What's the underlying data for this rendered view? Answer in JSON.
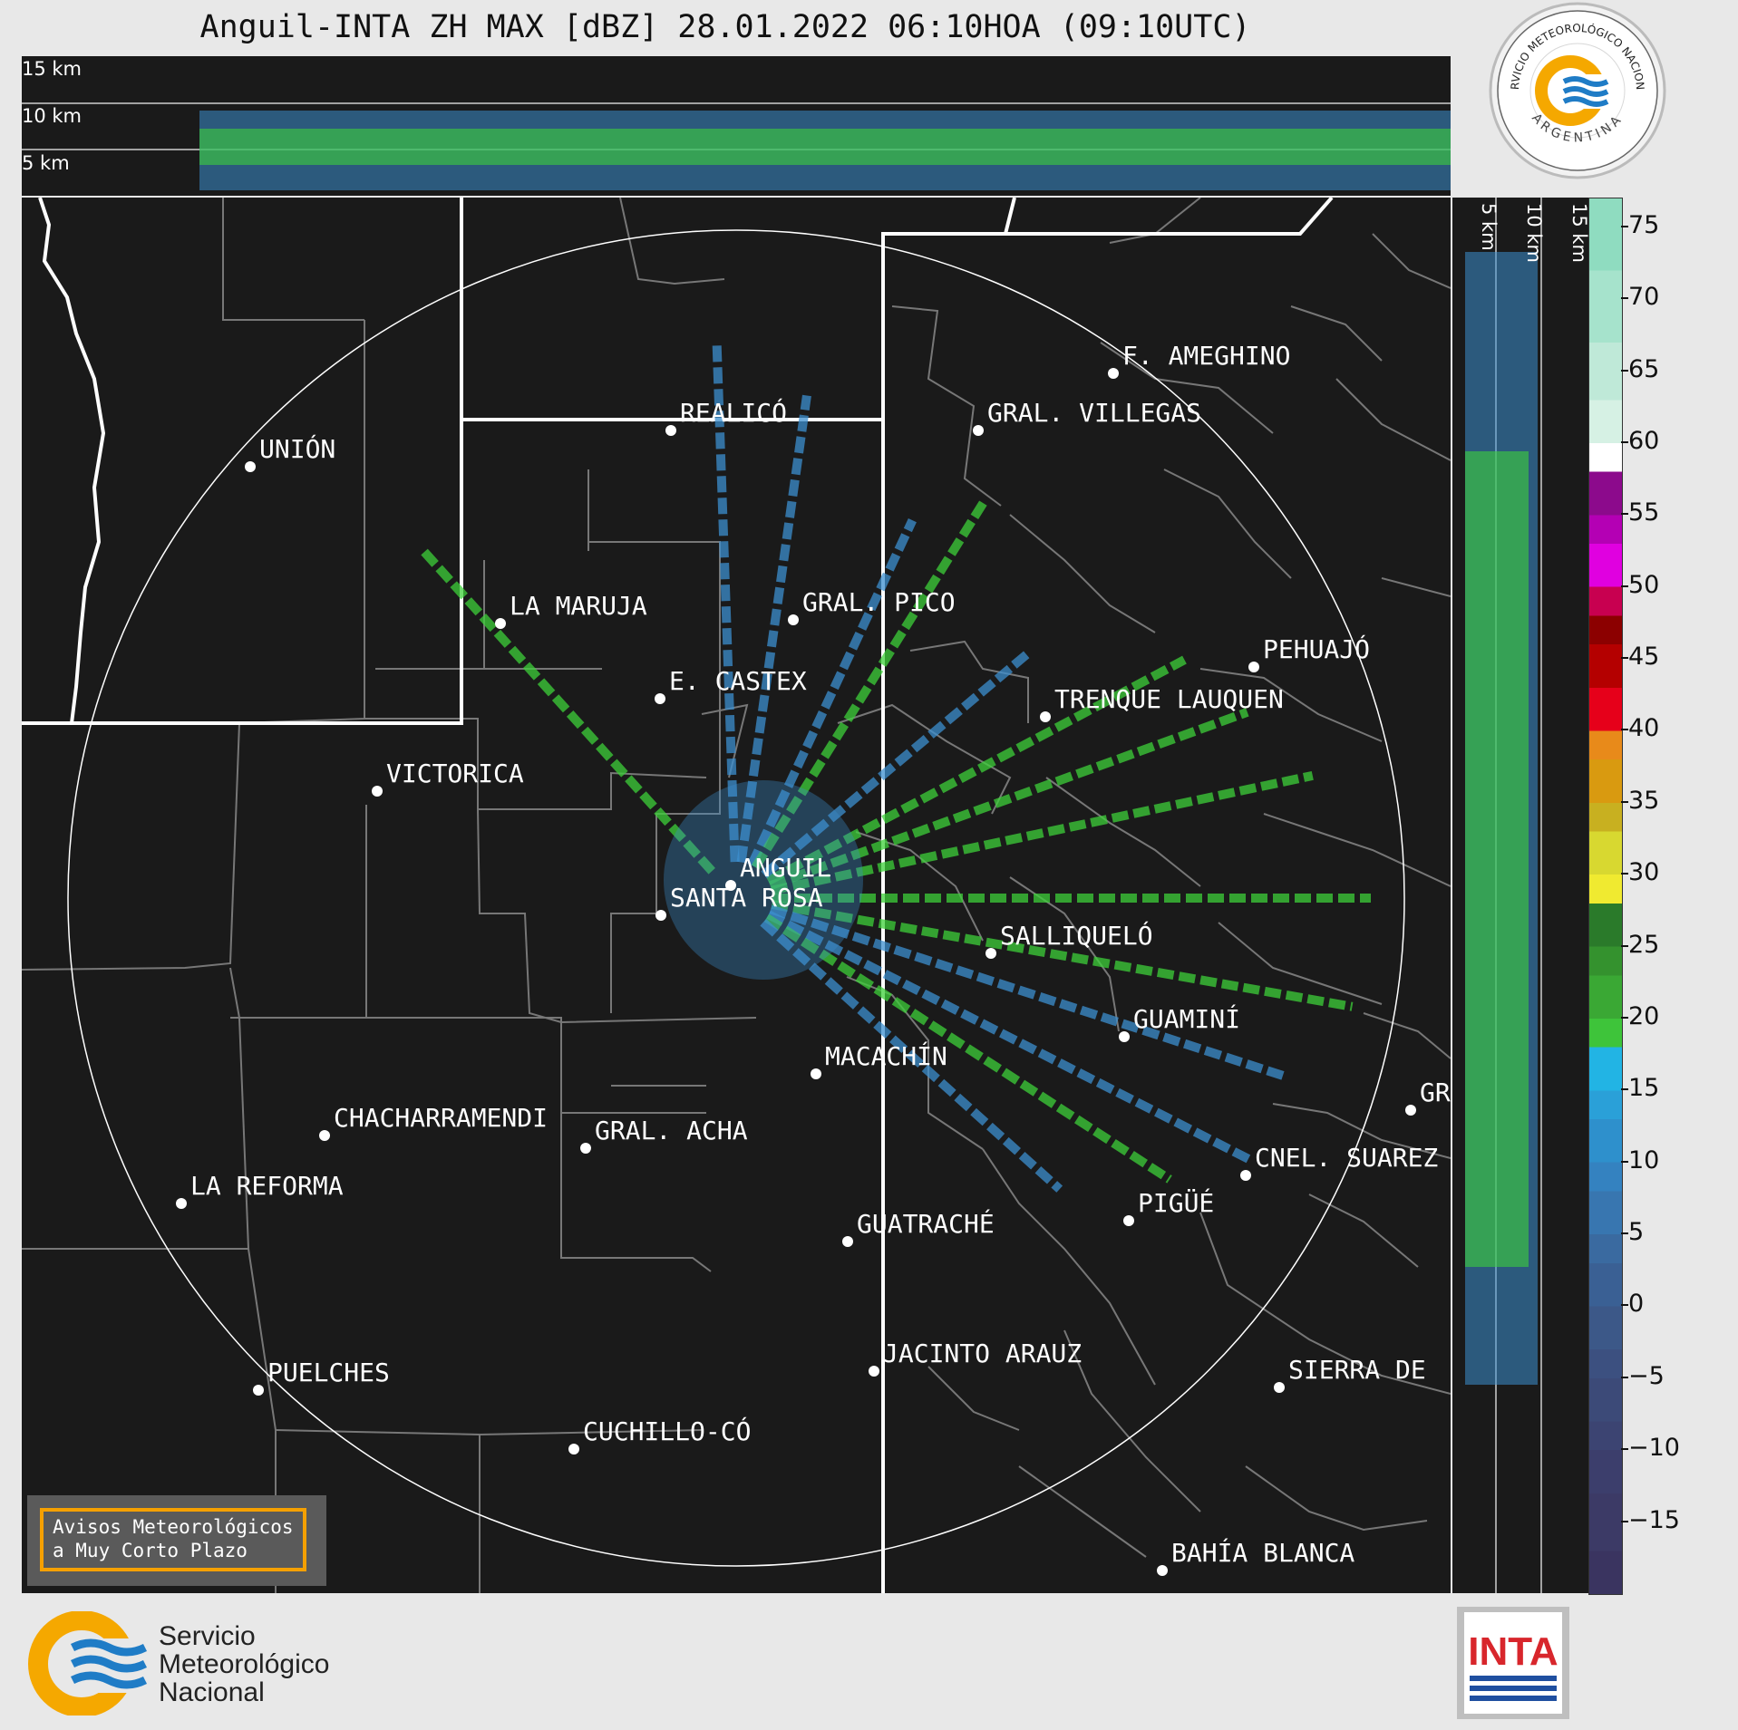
{
  "title": "Anguil-INTA ZH MAX [dBZ] 28.01.2022 06:10HOA (09:10UTC)",
  "top_panel": {
    "altitude_labels": [
      "15 km",
      "10 km",
      "5 km"
    ]
  },
  "side_panel": {
    "altitude_labels": [
      "5 km",
      "10 km",
      "15 km"
    ]
  },
  "colorbar": {
    "unit": "dBZ",
    "ticks": [
      "75",
      "70",
      "65",
      "60",
      "55",
      "50",
      "45",
      "40",
      "35",
      "30",
      "25",
      "20",
      "15",
      "10",
      "5",
      "0",
      "−5",
      "−10",
      "−15"
    ],
    "range": [
      -20,
      77
    ]
  },
  "cities": [
    {
      "name": "F. AMEGHINO"
    },
    {
      "name": "GRAL. VILLEGAS"
    },
    {
      "name": "REALICÓ"
    },
    {
      "name": "UNIÓN"
    },
    {
      "name": "LA MARUJA"
    },
    {
      "name": "GRAL. PICO"
    },
    {
      "name": "PEHUAJÓ"
    },
    {
      "name": "E. CASTEX"
    },
    {
      "name": "TRENQUE LAUQUEN"
    },
    {
      "name": "VICTORICA"
    },
    {
      "name": "ANGUIL"
    },
    {
      "name": "SANTA ROSA"
    },
    {
      "name": "SALLIQUELÓ"
    },
    {
      "name": "GUAMINÍ"
    },
    {
      "name": "MACACHÍN"
    },
    {
      "name": "GR"
    },
    {
      "name": "CHACHARRAMENDI"
    },
    {
      "name": "GRAL. ACHA"
    },
    {
      "name": "CNEL. SUAREZ"
    },
    {
      "name": "LA REFORMA"
    },
    {
      "name": "PIGÜÉ"
    },
    {
      "name": "GUATRACHÉ"
    },
    {
      "name": "JACINTO ARAUZ"
    },
    {
      "name": "SIERRA DE"
    },
    {
      "name": "PUELCHES"
    },
    {
      "name": "CUCHILLO-CÓ"
    },
    {
      "name": "BAHÍA BLANCA"
    }
  ],
  "notice": {
    "line1": "Avisos Meteorológicos",
    "line2": "a Muy Corto Plazo"
  },
  "footer": {
    "smn_line1": "Servicio",
    "smn_line2": "Meteorológico",
    "smn_line3": "Nacional",
    "inta": "INTA"
  },
  "seal": {
    "top_text": "SERVICIO METEOROLÓGICO NACIONAL",
    "bottom_text": "ARGENTINA"
  },
  "colors": {
    "background": "#1a1a1a",
    "page": "#e8e8e8",
    "echo_weak": "#3c8fcf",
    "echo_moderate": "#3ed03a",
    "echo_strong": "#e8e03a",
    "smn_blue": "#1f7cc6",
    "smn_orange": "#f5a800"
  }
}
